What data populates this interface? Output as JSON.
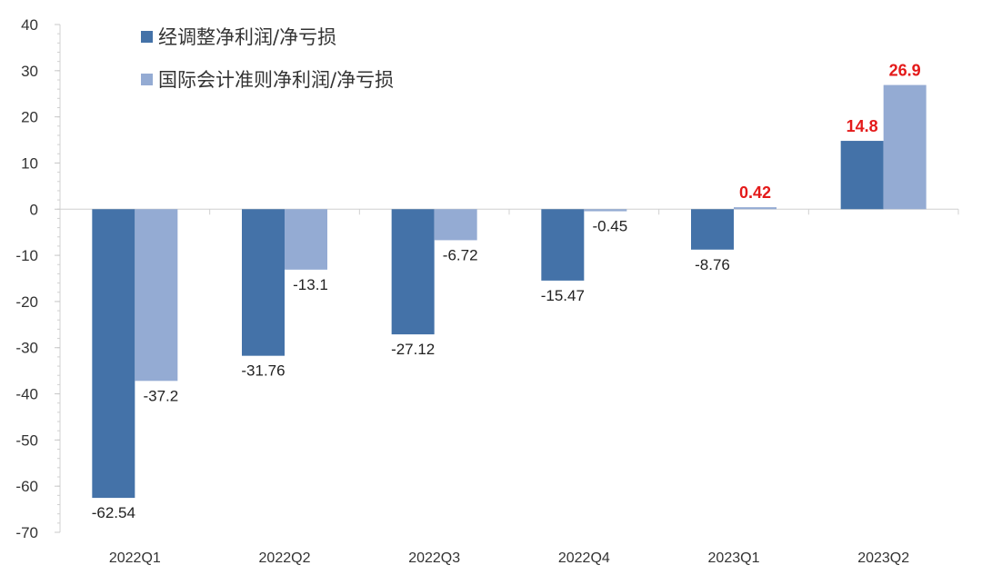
{
  "chart_data": {
    "type": "bar",
    "categories": [
      "2022Q1",
      "2022Q2",
      "2022Q3",
      "2022Q4",
      "2023Q1",
      "2023Q2"
    ],
    "series": [
      {
        "name": "经调整净利润/净亏损",
        "color": "#4472a8",
        "values": [
          -62.54,
          -31.76,
          -27.12,
          -15.47,
          -8.76,
          14.8
        ],
        "labels": [
          "-62.54",
          "-31.76",
          "-27.12",
          "-15.47",
          "-8.76",
          "14.8"
        ]
      },
      {
        "name": "国际会计准则净利润/净亏损",
        "color": "#94abd3",
        "values": [
          -37.2,
          -13.1,
          -6.72,
          -0.45,
          0.42,
          26.9
        ],
        "labels": [
          "-37.2",
          "-13.1",
          "-6.72",
          "-0.45",
          "0.42",
          "26.9"
        ]
      }
    ],
    "ylim": [
      -70,
      40
    ],
    "yticks": [
      40,
      30,
      20,
      10,
      0,
      -10,
      -20,
      -30,
      -40,
      -50,
      -60,
      -70
    ],
    "positive_label_color": "#e41a1a",
    "legend_position": "top-left",
    "grid": false,
    "xlabel": "",
    "ylabel": ""
  }
}
